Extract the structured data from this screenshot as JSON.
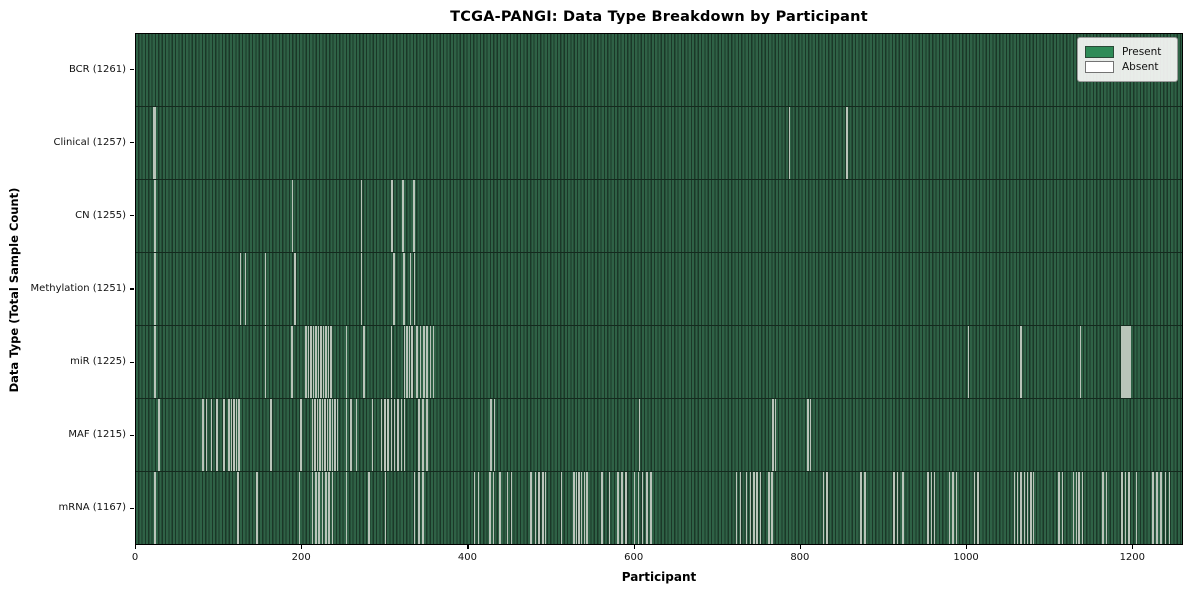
{
  "figure": {
    "title": "TCGA-PANGI: Data Type Breakdown by Participant",
    "x_axis_label": "Participant",
    "y_axis_label": "Data Type (Total Sample Count)"
  },
  "chart_data": {
    "type": "heatmap",
    "title": "TCGA-PANGI: Data Type Breakdown by Participant",
    "xlabel": "Participant",
    "ylabel": "Data Type (Total Sample Count)",
    "xlim": [
      0,
      1261
    ],
    "x_ticks": [
      0,
      200,
      400,
      600,
      800,
      1000,
      1200
    ],
    "total_participants": 1261,
    "present_color": "#2e8b57",
    "absent_color": "#ffffff",
    "legend": [
      {
        "label": "Present",
        "color": "#2e8b57"
      },
      {
        "label": "Absent",
        "color": "#ffffff"
      }
    ],
    "rows": [
      {
        "name": "BCR",
        "total": 1261,
        "display": "BCR (1261)",
        "absent_participants": []
      },
      {
        "name": "Clinical",
        "total": 1257,
        "display": "Clinical (1257)",
        "absent_participants": [
          20,
          22,
          787,
          856
        ]
      },
      {
        "name": "CN",
        "total": 1255,
        "display": "CN (1255)",
        "absent_participants": [
          22,
          188,
          271,
          308,
          321,
          334
        ]
      },
      {
        "name": "Methylation",
        "total": 1251,
        "display": "Methylation (1251)",
        "absent_participants": [
          22,
          125,
          131,
          155,
          191,
          271,
          310,
          322,
          330,
          335
        ]
      },
      {
        "name": "miR",
        "total": 1225,
        "display": "miR (1225)",
        "absent_participants": [
          22,
          155,
          187,
          204,
          207,
          210,
          213,
          216,
          219,
          222,
          225,
          228,
          231,
          234,
          253,
          274,
          307,
          323,
          326,
          329,
          332,
          338,
          342,
          346,
          350,
          354,
          358,
          1003,
          1066,
          1138,
          1188,
          1190,
          1192,
          1194,
          1196,
          1198
        ]
      },
      {
        "name": "MAF",
        "total": 1215,
        "display": "MAF (1215)",
        "absent_participants": [
          27,
          80,
          84,
          90,
          97,
          105,
          111,
          114,
          117,
          120,
          123,
          162,
          198,
          212,
          215,
          218,
          221,
          224,
          227,
          230,
          233,
          236,
          239,
          242,
          253,
          258,
          265,
          284,
          295,
          299,
          303,
          307,
          311,
          315,
          319,
          323,
          340,
          345,
          350,
          427,
          431,
          606,
          767,
          770,
          809,
          812
        ]
      },
      {
        "name": "mRNA",
        "total": 1167,
        "display": "mRNA (1167)",
        "absent_participants": [
          22,
          122,
          145,
          196,
          212,
          216,
          220,
          224,
          228,
          232,
          236,
          253,
          280,
          300,
          335,
          340,
          345,
          407,
          412,
          426,
          430,
          438,
          447,
          452,
          475,
          481,
          485,
          490,
          493,
          512,
          527,
          530,
          533,
          536,
          540,
          543,
          561,
          570,
          580,
          585,
          590,
          600,
          605,
          610,
          615,
          620,
          723,
          728,
          735,
          740,
          744,
          748,
          752,
          762,
          766,
          828,
          832,
          873,
          878,
          913,
          917,
          924,
          954,
          958,
          962,
          980,
          984,
          988,
          1010,
          1014,
          1058,
          1062,
          1066,
          1070,
          1074,
          1078,
          1081,
          1112,
          1116,
          1129,
          1133,
          1136,
          1140,
          1165,
          1169,
          1188,
          1192,
          1196,
          1205,
          1225,
          1230,
          1235,
          1240,
          1245
        ]
      }
    ]
  }
}
